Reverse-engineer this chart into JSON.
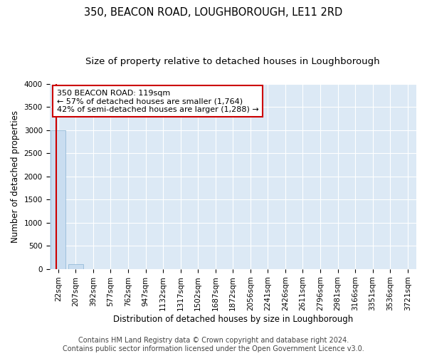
{
  "title": "350, BEACON ROAD, LOUGHBOROUGH, LE11 2RD",
  "subtitle": "Size of property relative to detached houses in Loughborough",
  "xlabel": "Distribution of detached houses by size in Loughborough",
  "ylabel": "Number of detached properties",
  "categories": [
    "22sqm",
    "207sqm",
    "392sqm",
    "577sqm",
    "762sqm",
    "947sqm",
    "1132sqm",
    "1317sqm",
    "1502sqm",
    "1687sqm",
    "1872sqm",
    "2056sqm",
    "2241sqm",
    "2426sqm",
    "2611sqm",
    "2796sqm",
    "2981sqm",
    "3166sqm",
    "3351sqm",
    "3536sqm",
    "3721sqm"
  ],
  "bar_heights": [
    3000,
    110,
    0,
    0,
    0,
    0,
    0,
    0,
    0,
    0,
    0,
    0,
    0,
    0,
    0,
    0,
    0,
    0,
    0,
    0,
    0
  ],
  "bar_color": "#c9ddf0",
  "bar_edge_color": "#8ab4d4",
  "vline_color": "#cc0000",
  "vline_x": -0.1,
  "ylim": [
    0,
    4000
  ],
  "yticks": [
    0,
    500,
    1000,
    1500,
    2000,
    2500,
    3000,
    3500,
    4000
  ],
  "annotation_text": "350 BEACON ROAD: 119sqm\n← 57% of detached houses are smaller (1,764)\n42% of semi-detached houses are larger (1,288) →",
  "annotation_box_color": "#ffffff",
  "annotation_border_color": "#cc0000",
  "footer_line1": "Contains HM Land Registry data © Crown copyright and database right 2024.",
  "footer_line2": "Contains public sector information licensed under the Open Government Licence v3.0.",
  "plot_bg_color": "#dce9f5",
  "grid_color": "#ffffff",
  "title_fontsize": 10.5,
  "subtitle_fontsize": 9.5,
  "axis_label_fontsize": 8.5,
  "tick_fontsize": 7.5,
  "annotation_fontsize": 8,
  "footer_fontsize": 7
}
